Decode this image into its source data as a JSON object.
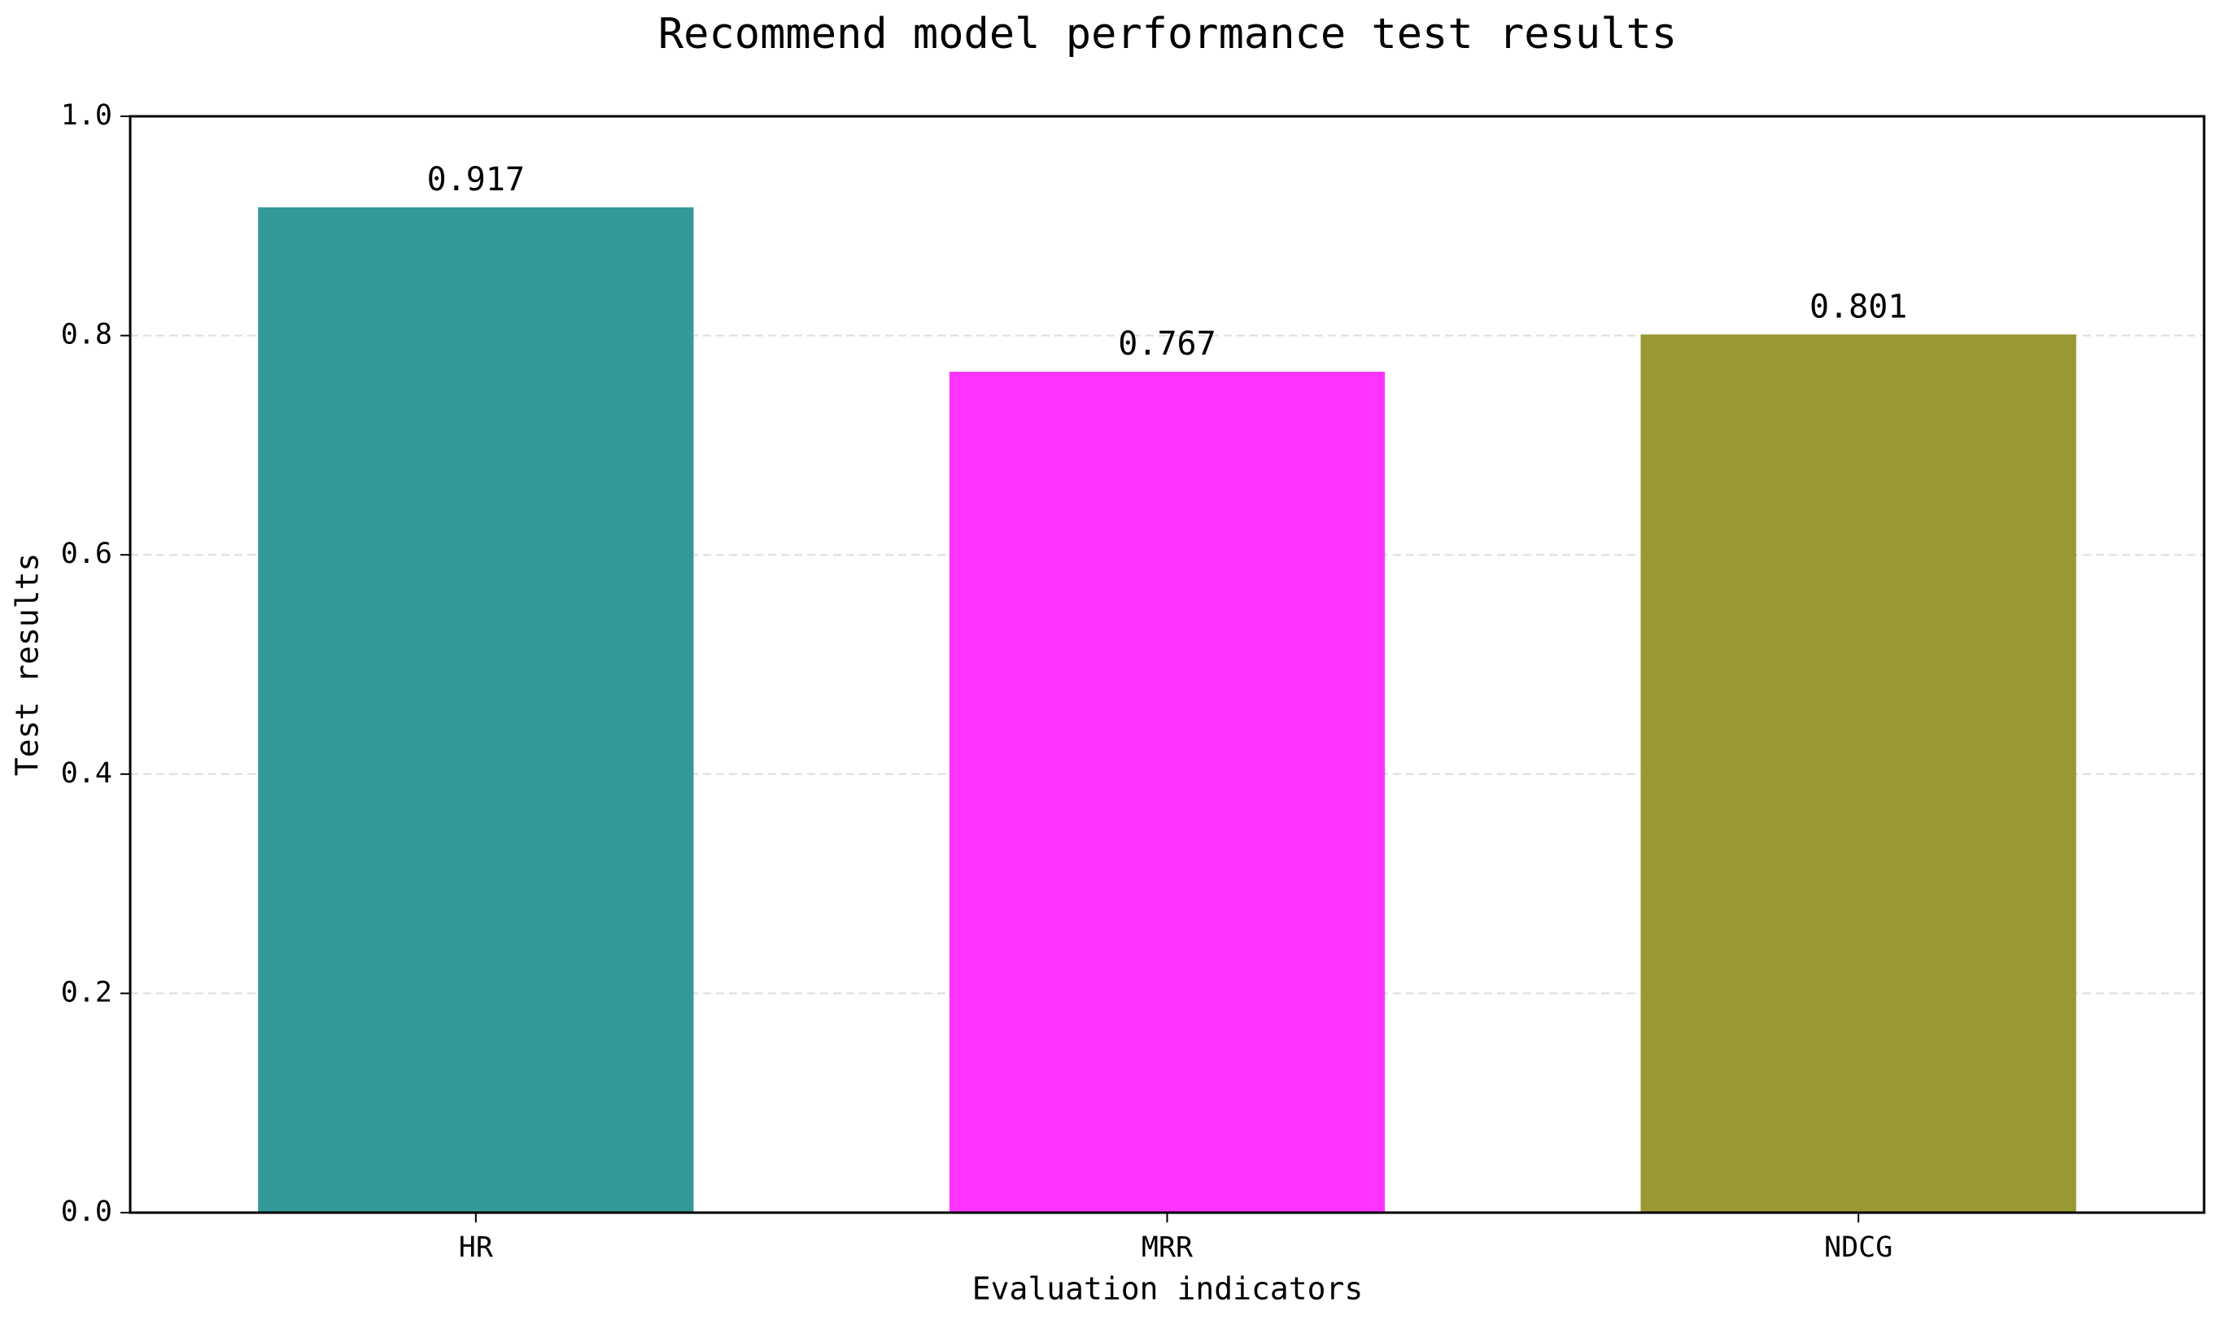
{
  "chart_data": {
    "type": "bar",
    "title": "Recommend model performance test results",
    "xlabel": "Evaluation indicators",
    "ylabel": "Test results",
    "categories": [
      "HR",
      "MRR",
      "NDCG"
    ],
    "values": [
      0.917,
      0.767,
      0.801
    ],
    "colors": [
      "#339999",
      "#ff33ff",
      "#999933"
    ],
    "ylim": [
      0,
      1
    ],
    "yticks": [
      {
        "value": 0,
        "label": "0.0"
      },
      0.2,
      0.4,
      0.6,
      0.8,
      {
        "value": 1,
        "label": "1.0"
      }
    ],
    "grid": true
  }
}
